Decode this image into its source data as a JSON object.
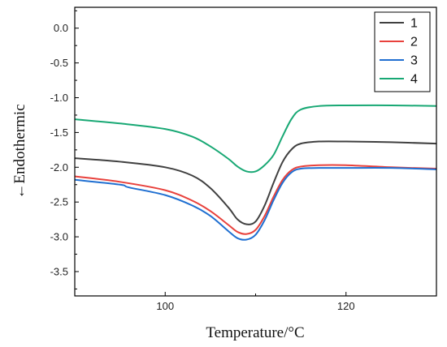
{
  "chart_data": {
    "type": "line",
    "title": "",
    "xlabel": "Temperature/°C",
    "ylabel": "←Endothermic",
    "xlim": [
      90,
      130
    ],
    "ylim": [
      -3.85,
      0.3
    ],
    "x_ticks": [
      100,
      120
    ],
    "y_ticks": [
      0.0,
      -0.5,
      -1.0,
      -1.5,
      -2.0,
      -2.5,
      -3.0,
      -3.5
    ],
    "x_tick_labels": [
      "100",
      "120"
    ],
    "y_tick_labels": [
      "0.0",
      "-0.5",
      "-1.0",
      "-1.5",
      "-2.0",
      "-2.5",
      "-3.0",
      "-3.5"
    ],
    "grid": false,
    "legend_position": "top-right",
    "series": [
      {
        "name": "1",
        "color": "#404040",
        "points": [
          [
            90,
            -1.87
          ],
          [
            95,
            -1.92
          ],
          [
            100,
            -2.0
          ],
          [
            103,
            -2.12
          ],
          [
            105,
            -2.3
          ],
          [
            107,
            -2.58
          ],
          [
            108,
            -2.75
          ],
          [
            109,
            -2.82
          ],
          [
            110,
            -2.78
          ],
          [
            111,
            -2.55
          ],
          [
            112,
            -2.22
          ],
          [
            113,
            -1.92
          ],
          [
            114,
            -1.74
          ],
          [
            115,
            -1.66
          ],
          [
            117,
            -1.63
          ],
          [
            120,
            -1.63
          ],
          [
            125,
            -1.64
          ],
          [
            130,
            -1.66
          ]
        ]
      },
      {
        "name": "2",
        "color": "#e8413c",
        "points": [
          [
            90,
            -2.13
          ],
          [
            95,
            -2.21
          ],
          [
            100,
            -2.33
          ],
          [
            103,
            -2.48
          ],
          [
            105,
            -2.63
          ],
          [
            107,
            -2.83
          ],
          [
            108,
            -2.93
          ],
          [
            109,
            -2.96
          ],
          [
            110,
            -2.9
          ],
          [
            111,
            -2.7
          ],
          [
            112,
            -2.42
          ],
          [
            113,
            -2.18
          ],
          [
            114,
            -2.04
          ],
          [
            115,
            -1.99
          ],
          [
            117,
            -1.97
          ],
          [
            120,
            -1.97
          ],
          [
            125,
            -2.0
          ],
          [
            130,
            -2.02
          ]
        ]
      },
      {
        "name": "3",
        "color": "#1f6fd1",
        "points": [
          [
            90,
            -2.18
          ],
          [
            95,
            -2.25
          ],
          [
            96,
            -2.29
          ],
          [
            100,
            -2.4
          ],
          [
            103,
            -2.55
          ],
          [
            105,
            -2.7
          ],
          [
            107,
            -2.92
          ],
          [
            108,
            -3.02
          ],
          [
            109,
            -3.04
          ],
          [
            110,
            -2.97
          ],
          [
            111,
            -2.76
          ],
          [
            112,
            -2.47
          ],
          [
            113,
            -2.22
          ],
          [
            114,
            -2.07
          ],
          [
            115,
            -2.02
          ],
          [
            117,
            -2.01
          ],
          [
            120,
            -2.01
          ],
          [
            125,
            -2.01
          ],
          [
            130,
            -2.03
          ]
        ]
      },
      {
        "name": "4",
        "color": "#18a874",
        "points": [
          [
            90,
            -1.31
          ],
          [
            95,
            -1.37
          ],
          [
            100,
            -1.45
          ],
          [
            103,
            -1.56
          ],
          [
            105,
            -1.7
          ],
          [
            107,
            -1.88
          ],
          [
            108,
            -1.99
          ],
          [
            109,
            -2.06
          ],
          [
            110,
            -2.06
          ],
          [
            111,
            -1.97
          ],
          [
            112,
            -1.82
          ],
          [
            113,
            -1.55
          ],
          [
            114,
            -1.3
          ],
          [
            115,
            -1.17
          ],
          [
            117,
            -1.12
          ],
          [
            120,
            -1.11
          ],
          [
            125,
            -1.11
          ],
          [
            130,
            -1.12
          ]
        ]
      }
    ]
  }
}
